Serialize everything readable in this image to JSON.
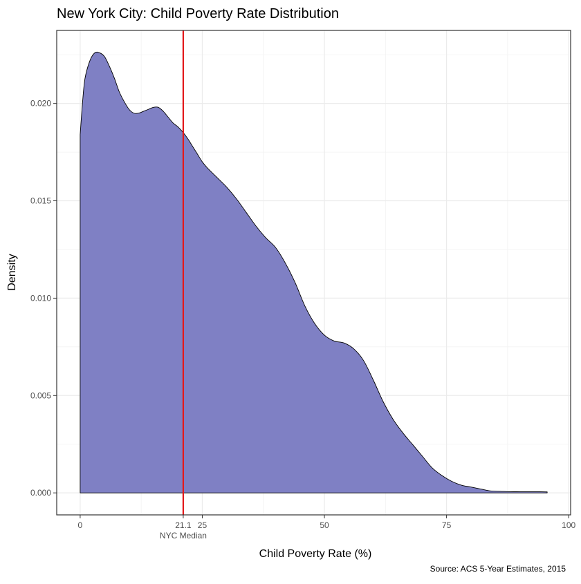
{
  "chart_data": {
    "type": "area",
    "title": "New York City: Child Poverty Rate Distribution",
    "xlabel": "Child Poverty Rate (%)",
    "ylabel": "Density",
    "caption": "Source: ACS 5-Year Estimates, 2015",
    "xlim": [
      -4.8,
      100.4
    ],
    "ylim": [
      -0.00113,
      0.02375
    ],
    "x_ticks": [
      0,
      25,
      50,
      75,
      100
    ],
    "y_ticks": [
      0.0,
      0.005,
      0.01,
      0.015,
      0.02
    ],
    "x_tick_labels": [
      "0",
      "25",
      "50",
      "75",
      "100"
    ],
    "y_tick_labels": [
      "0.000",
      "0.005",
      "0.010",
      "0.015",
      "0.020"
    ],
    "grid": true,
    "series": [
      {
        "fill": "#7f80c4",
        "stroke": "#000000",
        "x": [
          0,
          0.5,
          1,
          2,
          3,
          4,
          5,
          6,
          7,
          8,
          9,
          10,
          11,
          12,
          13,
          14,
          15,
          16,
          17,
          18,
          19,
          20,
          21.1,
          22,
          23,
          24,
          25,
          26,
          28,
          30,
          32,
          34,
          36,
          38,
          40,
          42,
          44,
          46,
          48,
          50,
          52,
          54,
          56,
          58,
          60,
          62,
          64,
          66,
          68,
          70,
          72,
          74,
          76,
          78,
          80,
          82,
          84,
          86,
          88,
          90,
          92,
          94,
          95.6
        ],
        "y": [
          0.0184,
          0.0201,
          0.0213,
          0.0222,
          0.0226,
          0.0226,
          0.0224,
          0.0219,
          0.0213,
          0.0206,
          0.0201,
          0.0197,
          0.0195,
          0.0195,
          0.0196,
          0.0197,
          0.0198,
          0.0198,
          0.0196,
          0.0193,
          0.019,
          0.0188,
          0.0185,
          0.0182,
          0.0178,
          0.0174,
          0.017,
          0.0167,
          0.0162,
          0.0157,
          0.0151,
          0.0144,
          0.0137,
          0.0131,
          0.0126,
          0.0118,
          0.0108,
          0.0096,
          0.0087,
          0.0081,
          0.0078,
          0.0077,
          0.0074,
          0.0068,
          0.0058,
          0.0047,
          0.0038,
          0.0031,
          0.0025,
          0.0019,
          0.0013,
          0.0009,
          0.0006,
          0.0004,
          0.0003,
          0.0002,
          0.0001,
          8e-05,
          6e-05,
          6e-05,
          6e-05,
          6e-05,
          5e-05
        ]
      }
    ],
    "reference_line": {
      "value": 21.1,
      "label": "NYC Median",
      "value_label": "21.1",
      "color": "#e31a1c"
    }
  }
}
